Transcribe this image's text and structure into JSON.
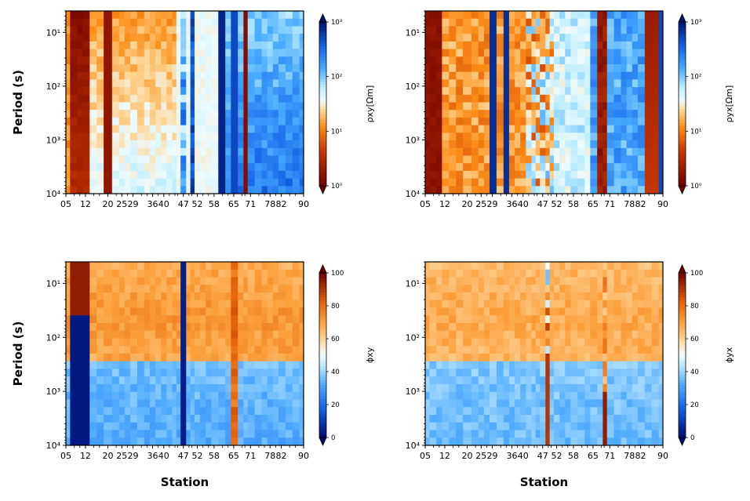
{
  "chart_data": [
    {
      "type": "heatmap",
      "id": "rho_xy",
      "ylabel": "Period (s)",
      "xlabel": "",
      "colorbar": {
        "label": "ρxy[Ωm]",
        "scale": "log",
        "range": [
          1,
          1000
        ],
        "ticks": [
          "10⁰",
          "10¹",
          "10²",
          "10³"
        ],
        "colormap": "rho"
      },
      "rows": 24,
      "pattern": "rho_xy"
    },
    {
      "type": "heatmap",
      "id": "rho_yx",
      "ylabel": "",
      "xlabel": "",
      "colorbar": {
        "label": "ρyx[Ωm]",
        "scale": "log",
        "range": [
          1,
          1000
        ],
        "ticks": [
          "10⁰",
          "10¹",
          "10²",
          "10³"
        ],
        "colormap": "rho"
      },
      "rows": 24,
      "pattern": "rho_yx"
    },
    {
      "type": "heatmap",
      "id": "phi_xy",
      "ylabel": "Period (s)",
      "xlabel": "Station",
      "colorbar": {
        "label": "ϕxy",
        "scale": "linear",
        "range": [
          0,
          100
        ],
        "ticks": [
          "0",
          "20",
          "40",
          "60",
          "80",
          "100"
        ],
        "colormap": "phase"
      },
      "rows": 24,
      "pattern": "phi_xy"
    },
    {
      "type": "heatmap",
      "id": "phi_yx",
      "ylabel": "",
      "xlabel": "Station",
      "colorbar": {
        "label": "ϕyx",
        "scale": "linear",
        "range": [
          0,
          100
        ],
        "ticks": [
          "0",
          "20",
          "40",
          "60",
          "80",
          "100"
        ],
        "colormap": "phase"
      },
      "rows": 24,
      "pattern": "phi_yx"
    }
  ],
  "shared_axes": {
    "x_tick_labels": [
      "05",
      "12",
      "20",
      "25",
      "29",
      "36",
      "40",
      "47",
      "52",
      "58",
      "65",
      "71",
      "78",
      "82",
      "90"
    ],
    "x_tick_values": [
      5,
      12,
      20,
      25,
      29,
      36,
      40,
      47,
      52,
      58,
      65,
      71,
      78,
      82,
      90
    ],
    "x_minor_station_values": [
      8,
      10,
      15,
      17,
      23,
      27,
      32,
      34,
      38,
      42,
      44,
      45,
      49,
      50,
      54,
      56,
      61,
      63,
      68,
      69,
      74,
      76,
      80,
      85,
      87
    ],
    "x_range": [
      5,
      90
    ],
    "y_tick_labels": [
      "10¹",
      "10²",
      "10³",
      "10⁴"
    ],
    "y_tick_values": [
      10,
      100,
      1000,
      10000
    ],
    "y_range": [
      4,
      10000
    ],
    "y_scale": "log",
    "y_inverted": true
  }
}
